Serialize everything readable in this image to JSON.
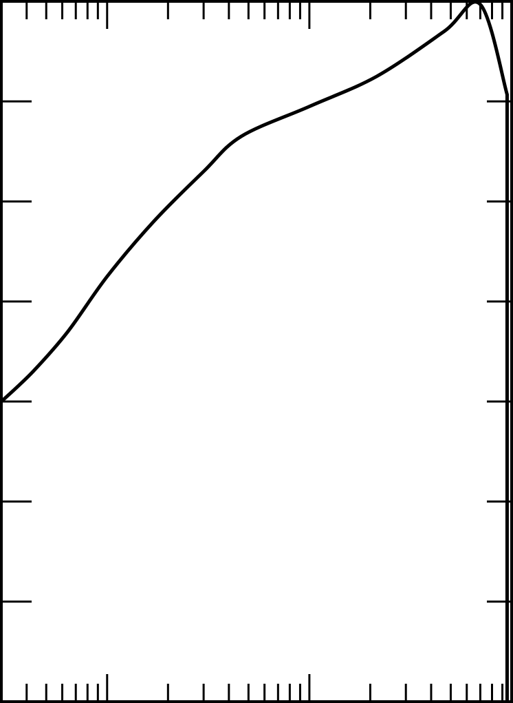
{
  "chart_data": {
    "type": "line",
    "title": "",
    "xlabel": "",
    "ylabel": "",
    "x_scale": "log",
    "xlim": [
      3,
      1000
    ],
    "ylim": [
      0,
      7
    ],
    "grid": false,
    "legend": "none",
    "x_major_ticks": [
      10,
      100
    ],
    "y_ticks": [
      1,
      2,
      3,
      4,
      5,
      6
    ],
    "series": [
      {
        "color": "#000000",
        "x": [
          3,
          4.3,
          6.4,
          10,
          17,
          30,
          46,
          100,
          215,
          464,
          700,
          950
        ],
        "y": [
          3.0,
          3.3,
          3.7,
          4.25,
          4.8,
          5.3,
          5.65,
          5.95,
          6.25,
          6.7,
          6.97,
          6.07
        ],
        "drop_to_baseline_at_x": 950
      }
    ],
    "colors": {
      "line": "#000000",
      "background": "#ffffff"
    }
  }
}
